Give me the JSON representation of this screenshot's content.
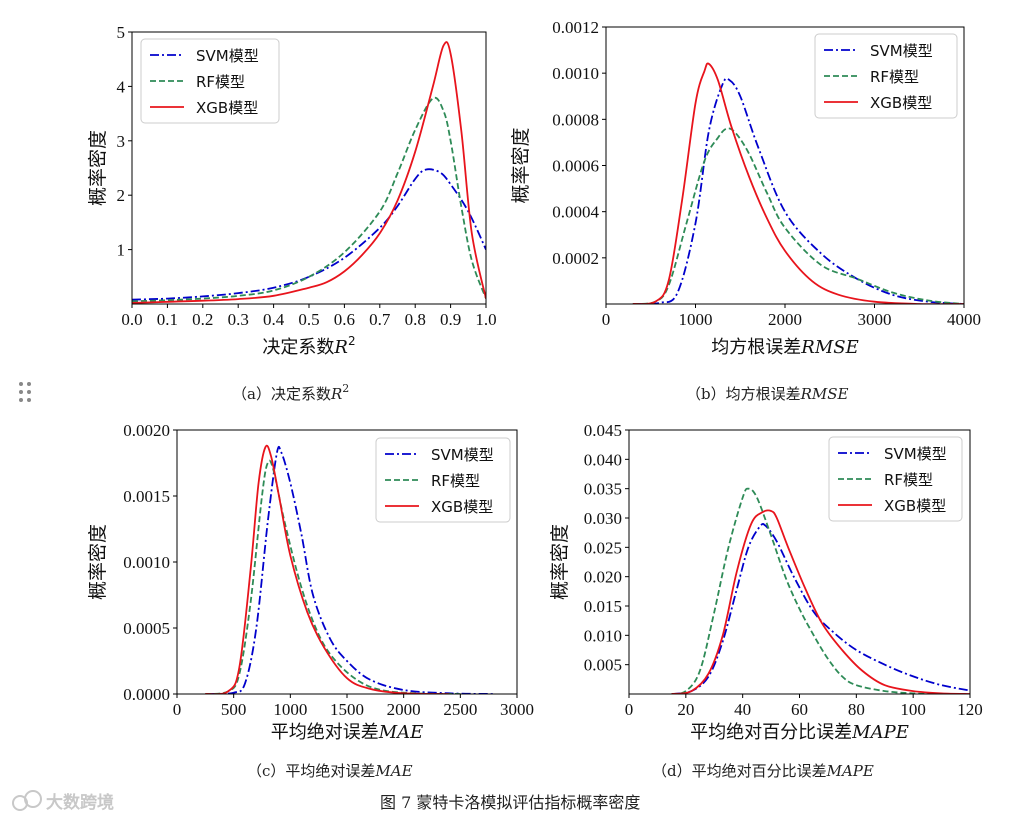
{
  "figure_caption": "图 7  蒙特卡洛模拟评估指标概率密度",
  "watermark": "大数跨境",
  "chart_data": [
    {
      "type": "line",
      "caption_prefix": "（a）决定系数",
      "caption_var": "R",
      "caption_sup": "2",
      "xlabel_prefix": "决定系数",
      "xlabel_var": "R",
      "xlabel_sup": "2",
      "ylabel": "概率密度",
      "xlim": [
        0.0,
        1.0
      ],
      "ylim": [
        0,
        5
      ],
      "xticks": [
        0.0,
        0.1,
        0.2,
        0.3,
        0.4,
        0.5,
        0.6,
        0.7,
        0.8,
        0.9,
        1.0
      ],
      "xtick_labels": [
        "0.0",
        "0.1",
        "0.2",
        "0.3",
        "0.4",
        "0.5",
        "0.6",
        "0.7",
        "0.8",
        "0.9",
        "1.0"
      ],
      "yticks": [
        1,
        2,
        3,
        4,
        5
      ],
      "ytick_labels": [
        "1",
        "2",
        "3",
        "4",
        "5"
      ],
      "legend": [
        "SVM模型",
        "RF模型",
        "XGB模型"
      ],
      "legend_position": "top-left",
      "series": [
        {
          "name": "SVM模型",
          "x": [
            0,
            0.1,
            0.2,
            0.3,
            0.4,
            0.5,
            0.6,
            0.7,
            0.75,
            0.8,
            0.83,
            0.87,
            0.9,
            0.95,
            1.0
          ],
          "values": [
            0.08,
            0.1,
            0.14,
            0.2,
            0.3,
            0.5,
            0.85,
            1.4,
            1.8,
            2.3,
            2.47,
            2.42,
            2.2,
            1.7,
            1.0
          ]
        },
        {
          "name": "RF模型",
          "x": [
            0,
            0.1,
            0.2,
            0.3,
            0.4,
            0.5,
            0.6,
            0.7,
            0.75,
            0.8,
            0.85,
            0.88,
            0.9,
            0.93,
            0.96,
            1.0
          ],
          "values": [
            0.05,
            0.07,
            0.1,
            0.15,
            0.25,
            0.5,
            0.95,
            1.7,
            2.4,
            3.2,
            3.78,
            3.55,
            3.0,
            1.8,
            0.8,
            0.1
          ]
        },
        {
          "name": "XGB模型",
          "x": [
            0,
            0.1,
            0.2,
            0.3,
            0.4,
            0.5,
            0.55,
            0.6,
            0.65,
            0.7,
            0.75,
            0.8,
            0.85,
            0.88,
            0.9,
            0.93,
            0.96,
            1.0
          ],
          "values": [
            0.02,
            0.04,
            0.06,
            0.09,
            0.15,
            0.3,
            0.4,
            0.6,
            0.9,
            1.3,
            1.9,
            2.8,
            4.0,
            4.75,
            4.6,
            3.2,
            1.3,
            0.1
          ]
        }
      ]
    },
    {
      "type": "line",
      "caption_prefix": "（b）均方根误差",
      "caption_var": "RMSE",
      "caption_sup": "",
      "xlabel_prefix": "均方根误差",
      "xlabel_var": "RMSE",
      "xlabel_sup": "",
      "ylabel": "概率密度",
      "xlim": [
        0,
        4000
      ],
      "ylim": [
        0,
        0.0012
      ],
      "xticks": [
        0,
        1000,
        2000,
        3000,
        4000
      ],
      "xtick_labels": [
        "0",
        "1000",
        "2000",
        "3000",
        "4000"
      ],
      "yticks": [
        0.0002,
        0.0004,
        0.0006,
        0.0008,
        0.001,
        0.0012
      ],
      "ytick_labels": [
        "0.0002",
        "0.0004",
        "0.0006",
        "0.0008",
        "0.0010",
        "0.0012"
      ],
      "legend": [
        "SVM模型",
        "RF模型",
        "XGB模型"
      ],
      "legend_position": "top-right",
      "series": [
        {
          "name": "SVM模型",
          "x": [
            300,
            600,
            800,
            1000,
            1150,
            1300,
            1380,
            1500,
            1700,
            2000,
            2400,
            2800,
            3200,
            3600,
            4000
          ],
          "values": [
            0,
            5e-06,
            5e-05,
            0.00035,
            0.00075,
            0.00095,
            0.00097,
            0.0009,
            0.00068,
            0.0004,
            0.00022,
            0.00011,
            4e-05,
            1e-05,
            0
          ]
        },
        {
          "name": "RF模型",
          "x": [
            300,
            550,
            700,
            900,
            1100,
            1250,
            1350,
            1450,
            1600,
            1800,
            2000,
            2400,
            2800,
            3200,
            3600,
            4000
          ],
          "values": [
            0,
            1e-05,
            8e-05,
            0.00035,
            0.00062,
            0.00072,
            0.00076,
            0.00074,
            0.00065,
            0.00048,
            0.00033,
            0.00017,
            0.00011,
            5e-05,
            1.5e-05,
            0
          ]
        },
        {
          "name": "XGB模型",
          "x": [
            300,
            550,
            700,
            850,
            1000,
            1100,
            1150,
            1250,
            1400,
            1600,
            1800,
            2000,
            2300,
            2600,
            3000,
            3500,
            4000
          ],
          "values": [
            0,
            1e-05,
            0.0001,
            0.00045,
            0.00087,
            0.00101,
            0.00104,
            0.00097,
            0.00077,
            0.00055,
            0.00037,
            0.00023,
            0.0001,
            4e-05,
            1e-05,
            0,
            0
          ]
        }
      ]
    },
    {
      "type": "line",
      "caption_prefix": "（c）平均绝对误差",
      "caption_var": "MAE",
      "caption_sup": "",
      "xlabel_prefix": "平均绝对误差",
      "xlabel_var": "MAE",
      "xlabel_sup": "",
      "ylabel": "概率密度",
      "xlim": [
        0,
        3000
      ],
      "ylim": [
        0,
        0.002
      ],
      "xticks": [
        0,
        500,
        1000,
        1500,
        2000,
        2500,
        3000
      ],
      "xtick_labels": [
        "0",
        "500",
        "1000",
        "1500",
        "2000",
        "2500",
        "3000"
      ],
      "yticks": [
        0,
        0.0005,
        0.001,
        0.0015,
        0.002
      ],
      "ytick_labels": [
        "0.0000",
        "0.0005",
        "0.0010",
        "0.0015",
        "0.0020"
      ],
      "legend": [
        "SVM模型",
        "RF模型",
        "XGB模型"
      ],
      "legend_position": "top-right",
      "series": [
        {
          "name": "SVM模型",
          "x": [
            300,
            500,
            600,
            700,
            800,
            880,
            920,
            1000,
            1100,
            1200,
            1350,
            1500,
            1700,
            2000,
            2400,
            2800
          ],
          "values": [
            0,
            1e-05,
            8e-05,
            0.0005,
            0.0013,
            0.00182,
            0.00183,
            0.0016,
            0.0012,
            0.00075,
            0.00042,
            0.00025,
            0.00011,
            3e-05,
            5e-06,
            0
          ]
        },
        {
          "name": "RF模型",
          "x": [
            250,
            450,
            550,
            650,
            750,
            800,
            850,
            950,
            1100,
            1250,
            1400,
            1600,
            1800,
            2100,
            2500
          ],
          "values": [
            0,
            2e-05,
            0.00015,
            0.0007,
            0.0015,
            0.00175,
            0.0017,
            0.0013,
            0.0008,
            0.00045,
            0.00025,
            0.0001,
            3e-05,
            5e-06,
            0
          ]
        },
        {
          "name": "XGB模型",
          "x": [
            250,
            450,
            550,
            650,
            720,
            780,
            830,
            900,
            1000,
            1150,
            1300,
            1500,
            1700,
            2000,
            2400
          ],
          "values": [
            0,
            2e-05,
            0.0002,
            0.00095,
            0.0016,
            0.00187,
            0.0018,
            0.0015,
            0.00105,
            0.00062,
            0.00035,
            0.00012,
            4e-05,
            5e-06,
            0
          ]
        }
      ]
    },
    {
      "type": "line",
      "caption_prefix": "（d）平均绝对百分比误差",
      "caption_var": "MAPE",
      "caption_sup": "",
      "xlabel_prefix": "平均绝对百分比误差",
      "xlabel_var": "MAPE",
      "xlabel_sup": "",
      "ylabel": "概率密度",
      "xlim": [
        0,
        120
      ],
      "ylim": [
        0,
        0.045
      ],
      "xticks": [
        0,
        20,
        40,
        60,
        80,
        100,
        120
      ],
      "xtick_labels": [
        "0",
        "20",
        "40",
        "60",
        "80",
        "100",
        "120"
      ],
      "yticks": [
        0.005,
        0.01,
        0.015,
        0.02,
        0.025,
        0.03,
        0.035,
        0.04,
        0.045
      ],
      "ytick_labels": [
        "0.005",
        "0.010",
        "0.015",
        "0.020",
        "0.025",
        "0.030",
        "0.035",
        "0.040",
        "0.045"
      ],
      "legend": [
        "SVM模型",
        "RF模型",
        "XGB模型"
      ],
      "legend_position": "top-right",
      "series": [
        {
          "name": "SVM模型",
          "x": [
            15,
            22,
            28,
            33,
            38,
            42,
            46,
            48,
            52,
            58,
            65,
            72,
            80,
            90,
            100,
            110,
            120
          ],
          "values": [
            0,
            0.0005,
            0.003,
            0.009,
            0.018,
            0.025,
            0.0285,
            0.0287,
            0.026,
            0.02,
            0.014,
            0.0105,
            0.0075,
            0.005,
            0.003,
            0.0015,
            0.0006
          ]
        },
        {
          "name": "RF模型",
          "x": [
            15,
            20,
            25,
            30,
            35,
            40,
            42,
            45,
            50,
            55,
            60,
            65,
            70,
            75,
            80,
            90,
            100,
            110
          ],
          "values": [
            0,
            0.0005,
            0.004,
            0.014,
            0.025,
            0.0335,
            0.035,
            0.0335,
            0.027,
            0.02,
            0.0145,
            0.01,
            0.006,
            0.003,
            0.0015,
            0.0005,
            0.0001,
            0
          ]
        },
        {
          "name": "XGB模型",
          "x": [
            15,
            22,
            28,
            33,
            38,
            43,
            47,
            50,
            52,
            56,
            62,
            68,
            75,
            82,
            90,
            100,
            110,
            120
          ],
          "values": [
            0,
            0.0005,
            0.0035,
            0.01,
            0.021,
            0.029,
            0.031,
            0.0312,
            0.03,
            0.025,
            0.018,
            0.012,
            0.0075,
            0.004,
            0.0015,
            0.0005,
            0.0001,
            0
          ]
        }
      ]
    }
  ],
  "series_colors": {
    "SVM模型": "#0000cc",
    "RF模型": "#2e8b57",
    "XGB模型": "#e8141c"
  }
}
